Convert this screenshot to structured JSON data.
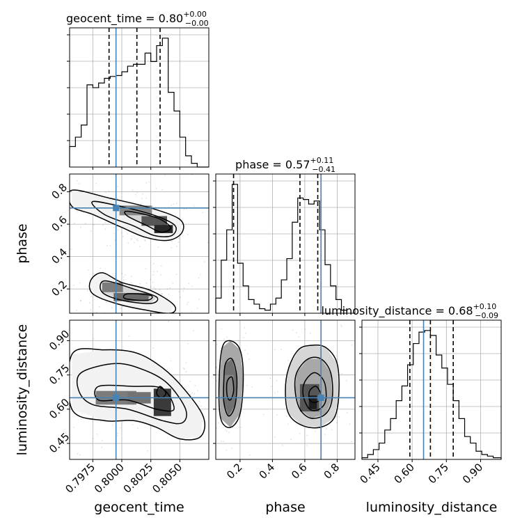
{
  "colors": {
    "truth": "#4682b4",
    "line": "#000000",
    "grid": "#b0b0b0"
  },
  "chart_data": {
    "type": "corner",
    "parameters": [
      "geocent_time",
      "phase",
      "luminosity_distance"
    ],
    "truths": {
      "geocent_time": 0.7995,
      "phase": 0.7,
      "luminosity_distance": 0.65
    },
    "ranges": {
      "geocent_time": [
        0.7955,
        0.8075
      ],
      "phase": [
        0.05,
        0.91
      ],
      "luminosity_distance": [
        0.38,
        0.99
      ]
    },
    "titles": [
      {
        "param": "geocent_time",
        "main": "geocent_time = 0.80",
        "upper": "+0.00",
        "lower": "−0.00"
      },
      {
        "param": "phase",
        "main": "phase = 0.57",
        "upper": "+0.11",
        "lower": "−0.41"
      },
      {
        "param": "luminosity_distance",
        "main": "luminosity_distance = 0.68",
        "upper": "+0.10",
        "lower": "−0.09"
      }
    ],
    "ticks": {
      "geocent_time": {
        "values": [
          0.7975,
          0.8,
          0.8025,
          0.805
        ],
        "labels": [
          "0.7975",
          "0.8000",
          "0.8025",
          "0.8050"
        ]
      },
      "phase": {
        "values": [
          0.2,
          0.4,
          0.6,
          0.8
        ],
        "labels": [
          "0.2",
          "0.4",
          "0.6",
          "0.8"
        ]
      },
      "luminosity_distance": {
        "values": [
          0.45,
          0.6,
          0.75,
          0.9
        ],
        "labels": [
          "0.45",
          "0.60",
          "0.75",
          "0.90"
        ]
      }
    },
    "histograms": {
      "geocent_time": {
        "edges": [
          0.7955,
          0.796,
          0.7965,
          0.797,
          0.7975,
          0.798,
          0.7985,
          0.799,
          0.7995,
          0.8,
          0.8005,
          0.801,
          0.8015,
          0.802,
          0.8025,
          0.803,
          0.8035,
          0.804,
          0.8045,
          0.805,
          0.8055,
          0.806,
          0.8065,
          0.807,
          0.8075
        ],
        "counts": [
          22,
          32,
          45,
          88,
          85,
          90,
          95,
          97,
          98,
          102,
          108,
          110,
          110,
          122,
          113,
          130,
          138,
          80,
          60,
          32,
          12,
          4,
          0,
          0
        ],
        "quantiles": [
          0.7989,
          0.8013,
          0.8033
        ]
      },
      "phase": {
        "edges": [
          0.05,
          0.0838,
          0.1175,
          0.1513,
          0.185,
          0.2188,
          0.2525,
          0.2863,
          0.32,
          0.3538,
          0.3875,
          0.4213,
          0.455,
          0.4888,
          0.5225,
          0.5563,
          0.59,
          0.6238,
          0.6575,
          0.6913,
          0.725,
          0.7588,
          0.7925,
          0.8263,
          0.86
        ],
        "counts": [
          10,
          35,
          55,
          85,
          33,
          18,
          9,
          6,
          3,
          2,
          6,
          10,
          22,
          36,
          60,
          76,
          75,
          72,
          74,
          55,
          32,
          18,
          9,
          2
        ],
        "quantiles": [
          0.16,
          0.57,
          0.68
        ]
      },
      "luminosity_distance": {
        "edges": [
          0.38,
          0.405,
          0.43,
          0.455,
          0.48,
          0.505,
          0.53,
          0.555,
          0.58,
          0.605,
          0.63,
          0.655,
          0.68,
          0.705,
          0.73,
          0.755,
          0.78,
          0.805,
          0.83,
          0.855,
          0.88,
          0.905,
          0.93,
          0.955,
          0.99
        ],
        "counts": [
          1,
          3,
          6,
          10,
          18,
          25,
          36,
          45,
          58,
          71,
          78,
          79,
          76,
          64,
          56,
          46,
          36,
          25,
          14,
          10,
          5,
          3,
          2,
          1
        ],
        "quantiles": [
          0.59,
          0.68,
          0.78
        ]
      }
    },
    "pair_phase_vs_geocent_time": {
      "high_density": [
        {
          "x": 0.8012,
          "y": 0.685,
          "w": 0.0028,
          "h": 0.06,
          "v": 0.35
        },
        {
          "x": 0.8028,
          "y": 0.62,
          "w": 0.0022,
          "h": 0.06,
          "v": 0.6
        },
        {
          "x": 0.8036,
          "y": 0.57,
          "w": 0.0016,
          "h": 0.05,
          "v": 0.85
        },
        {
          "x": 0.7992,
          "y": 0.21,
          "w": 0.0018,
          "h": 0.06,
          "v": 0.4
        },
        {
          "x": 0.8008,
          "y": 0.15,
          "w": 0.003,
          "h": 0.05,
          "v": 0.5
        }
      ],
      "contours": [
        [
          [
            0.7957,
            0.81
          ],
          [
            0.799,
            0.76
          ],
          [
            0.8025,
            0.7
          ],
          [
            0.805,
            0.63
          ],
          [
            0.8052,
            0.55
          ],
          [
            0.804,
            0.5
          ],
          [
            0.802,
            0.52
          ],
          [
            0.8,
            0.58
          ],
          [
            0.7975,
            0.66
          ],
          [
            0.7957,
            0.71
          ]
        ],
        [
          [
            0.7975,
            0.74
          ],
          [
            0.8005,
            0.7
          ],
          [
            0.803,
            0.65
          ],
          [
            0.8046,
            0.59
          ],
          [
            0.8043,
            0.53
          ],
          [
            0.8028,
            0.53
          ],
          [
            0.801,
            0.59
          ],
          [
            0.7985,
            0.66
          ]
        ],
        [
          [
            0.8005,
            0.68
          ],
          [
            0.803,
            0.64
          ],
          [
            0.8042,
            0.58
          ],
          [
            0.8034,
            0.55
          ],
          [
            0.8022,
            0.59
          ],
          [
            0.8005,
            0.65
          ]
        ],
        [
          [
            0.7983,
            0.3
          ],
          [
            0.8,
            0.24
          ],
          [
            0.8025,
            0.19
          ],
          [
            0.8045,
            0.1
          ],
          [
            0.8042,
            0.05
          ],
          [
            0.802,
            0.07
          ],
          [
            0.7995,
            0.11
          ],
          [
            0.7975,
            0.17
          ],
          [
            0.7973,
            0.25
          ]
        ],
        [
          [
            0.7985,
            0.25
          ],
          [
            0.801,
            0.2
          ],
          [
            0.803,
            0.15
          ],
          [
            0.8025,
            0.11
          ],
          [
            0.8,
            0.13
          ],
          [
            0.7983,
            0.18
          ]
        ],
        [
          [
            0.8005,
            0.17
          ],
          [
            0.8025,
            0.16
          ],
          [
            0.8022,
            0.13
          ],
          [
            0.8003,
            0.14
          ]
        ]
      ]
    },
    "pair_luminosity_distance_vs_geocent_time": {
      "high_density": [
        {
          "x": 0.7995,
          "y": 0.65,
          "w": 0.0035,
          "h": 0.06,
          "v": 0.4
        },
        {
          "x": 0.8035,
          "y": 0.63,
          "w": 0.0015,
          "h": 0.12,
          "v": 0.75
        },
        {
          "x": 0.8015,
          "y": 0.65,
          "w": 0.002,
          "h": 0.05,
          "v": 0.45
        }
      ],
      "contours": [
        [
          [
            0.7957,
            0.84
          ],
          [
            0.7985,
            0.86
          ],
          [
            0.801,
            0.85
          ],
          [
            0.803,
            0.8
          ],
          [
            0.805,
            0.71
          ],
          [
            0.807,
            0.57
          ],
          [
            0.8068,
            0.48
          ],
          [
            0.805,
            0.47
          ],
          [
            0.803,
            0.52
          ],
          [
            0.801,
            0.55
          ],
          [
            0.7985,
            0.55
          ],
          [
            0.7957,
            0.6
          ]
        ],
        [
          [
            0.7965,
            0.76
          ],
          [
            0.7995,
            0.8
          ],
          [
            0.802,
            0.77
          ],
          [
            0.804,
            0.71
          ],
          [
            0.8055,
            0.6
          ],
          [
            0.8052,
            0.54
          ],
          [
            0.8035,
            0.55
          ],
          [
            0.8005,
            0.6
          ],
          [
            0.7975,
            0.62
          ],
          [
            0.7963,
            0.68
          ]
        ],
        [
          [
            0.798,
            0.7
          ],
          [
            0.801,
            0.7
          ],
          [
            0.8035,
            0.69
          ],
          [
            0.8045,
            0.6
          ],
          [
            0.803,
            0.6
          ],
          [
            0.8005,
            0.64
          ],
          [
            0.798,
            0.64
          ]
        ],
        [
          [
            0.8033,
            0.7
          ],
          [
            0.8038,
            0.67
          ],
          [
            0.8034,
            0.65
          ],
          [
            0.803,
            0.67
          ]
        ]
      ]
    },
    "pair_luminosity_distance_vs_phase": {
      "high_density": [
        {
          "x": 0.13,
          "y": 0.7,
          "w": 0.06,
          "h": 0.1,
          "v": 0.35
        },
        {
          "x": 0.63,
          "y": 0.65,
          "w": 0.12,
          "h": 0.12,
          "v": 0.6
        },
        {
          "x": 0.65,
          "y": 0.63,
          "w": 0.05,
          "h": 0.06,
          "v": 0.9
        }
      ],
      "contours": [
        [
          [
            0.09,
            0.87
          ],
          [
            0.14,
            0.9
          ],
          [
            0.2,
            0.86
          ],
          [
            0.22,
            0.74
          ],
          [
            0.2,
            0.58
          ],
          [
            0.14,
            0.52
          ],
          [
            0.08,
            0.56
          ],
          [
            0.07,
            0.72
          ]
        ],
        [
          [
            0.11,
            0.8
          ],
          [
            0.15,
            0.82
          ],
          [
            0.18,
            0.74
          ],
          [
            0.17,
            0.62
          ],
          [
            0.13,
            0.57
          ],
          [
            0.1,
            0.63
          ],
          [
            0.1,
            0.73
          ]
        ],
        [
          [
            0.12,
            0.72
          ],
          [
            0.15,
            0.74
          ],
          [
            0.16,
            0.68
          ],
          [
            0.14,
            0.64
          ],
          [
            0.12,
            0.66
          ]
        ],
        [
          [
            0.5,
            0.78
          ],
          [
            0.56,
            0.86
          ],
          [
            0.64,
            0.88
          ],
          [
            0.73,
            0.87
          ],
          [
            0.8,
            0.8
          ],
          [
            0.81,
            0.66
          ],
          [
            0.78,
            0.56
          ],
          [
            0.69,
            0.52
          ],
          [
            0.58,
            0.53
          ],
          [
            0.5,
            0.58
          ],
          [
            0.48,
            0.68
          ]
        ],
        [
          [
            0.55,
            0.76
          ],
          [
            0.62,
            0.82
          ],
          [
            0.7,
            0.82
          ],
          [
            0.76,
            0.76
          ],
          [
            0.77,
            0.65
          ],
          [
            0.73,
            0.58
          ],
          [
            0.64,
            0.56
          ],
          [
            0.57,
            0.6
          ],
          [
            0.54,
            0.68
          ]
        ],
        [
          [
            0.6,
            0.72
          ],
          [
            0.66,
            0.76
          ],
          [
            0.72,
            0.72
          ],
          [
            0.73,
            0.64
          ],
          [
            0.69,
            0.6
          ],
          [
            0.63,
            0.6
          ],
          [
            0.59,
            0.66
          ]
        ],
        [
          [
            0.63,
            0.68
          ],
          [
            0.67,
            0.7
          ],
          [
            0.7,
            0.66
          ],
          [
            0.67,
            0.63
          ],
          [
            0.63,
            0.64
          ]
        ]
      ]
    }
  }
}
